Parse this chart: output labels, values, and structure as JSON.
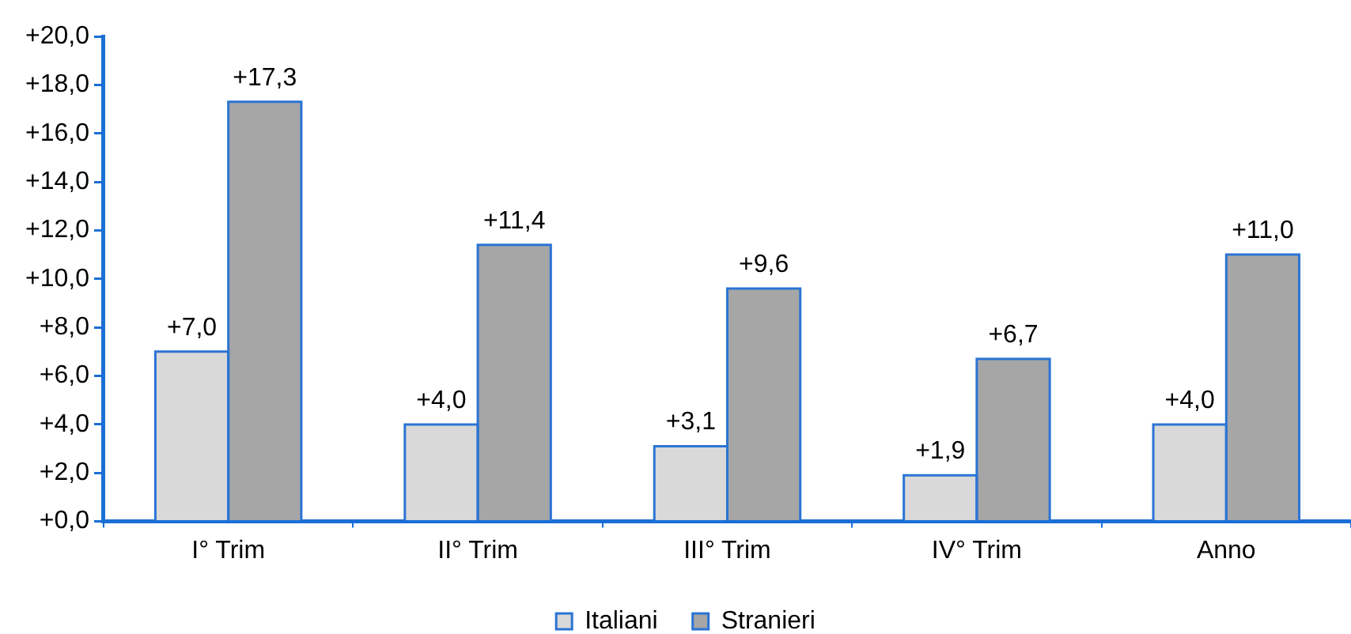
{
  "chart_data": {
    "type": "bar",
    "categories": [
      "I° Trim",
      "II° Trim",
      "III° Trim",
      "IV° Trim",
      "Anno"
    ],
    "series": [
      {
        "name": "Italiani",
        "color": "#d9d9d9",
        "values": [
          7.0,
          4.0,
          3.1,
          1.9,
          4.0
        ],
        "value_labels": [
          "+7,0",
          "+4,0",
          "+3,1",
          "+1,9",
          "+4,0"
        ]
      },
      {
        "name": "Stranieri",
        "color": "#a6a6a6",
        "values": [
          17.3,
          11.4,
          9.6,
          6.7,
          11.0
        ],
        "value_labels": [
          "+17,3",
          "+11,4",
          "+9,6",
          "+6,7",
          "+11,0"
        ]
      }
    ],
    "ylim": [
      0,
      20
    ],
    "yticks": [
      {
        "value": 0,
        "label": "+0,0"
      },
      {
        "value": 2,
        "label": "+2,0"
      },
      {
        "value": 4,
        "label": "+4,0"
      },
      {
        "value": 6,
        "label": "+6,0"
      },
      {
        "value": 8,
        "label": "+8,0"
      },
      {
        "value": 10,
        "label": "+10,0"
      },
      {
        "value": 12,
        "label": "+12,0"
      },
      {
        "value": 14,
        "label": "+14,0"
      },
      {
        "value": 16,
        "label": "+16,0"
      },
      {
        "value": 18,
        "label": "+18,0"
      },
      {
        "value": 20,
        "label": "+20,0"
      }
    ],
    "grid": false,
    "legend": "bottom"
  }
}
